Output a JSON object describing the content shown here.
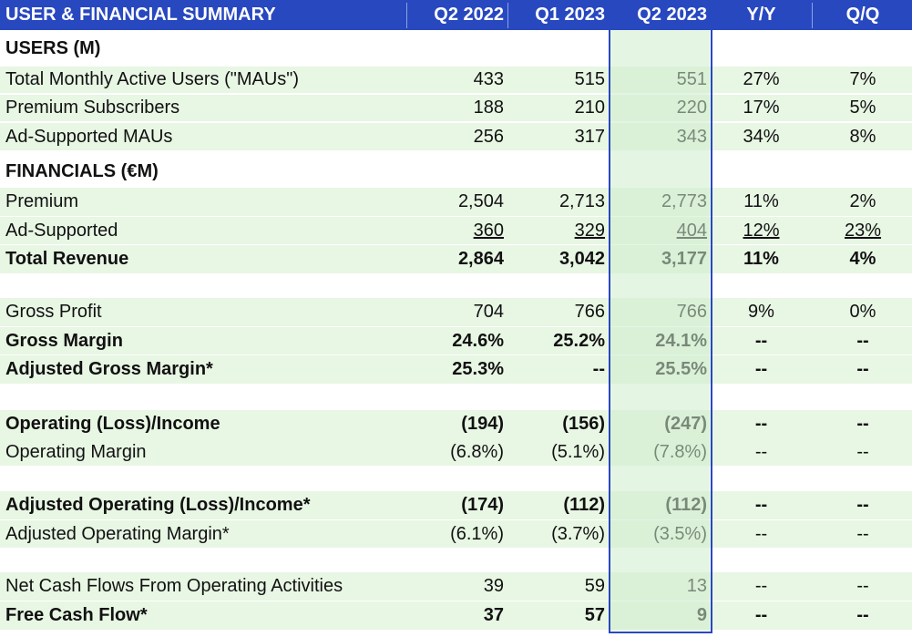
{
  "header": {
    "title": "USER & FINANCIAL SUMMARY",
    "columns": [
      "Q2 2022",
      "Q1 2023",
      "Q2 2023",
      "Y/Y",
      "Q/Q"
    ]
  },
  "rows": [
    {
      "label": "USERS (M)",
      "values": [
        "",
        "",
        "",
        "",
        ""
      ],
      "bold": true,
      "bg": "w",
      "underline": false
    },
    {
      "label": "Total Monthly Active Users (\"MAUs\")",
      "values": [
        "433",
        "515",
        "551",
        "27%",
        "7%"
      ],
      "bold": false,
      "bg": "g",
      "underline": false
    },
    {
      "label": "Premium Subscribers",
      "values": [
        "188",
        "210",
        "220",
        "17%",
        "5%"
      ],
      "bold": false,
      "bg": "g",
      "underline": false
    },
    {
      "label": "Ad-Supported MAUs",
      "values": [
        "256",
        "317",
        "343",
        "34%",
        "8%"
      ],
      "bold": false,
      "bg": "g",
      "underline": false
    },
    {
      "label": "FINANCIALS (€M)",
      "values": [
        "",
        "",
        "",
        "",
        ""
      ],
      "bold": true,
      "bg": "w",
      "underline": false
    },
    {
      "label": "Premium",
      "values": [
        "2,504",
        "2,713",
        "2,773",
        "11%",
        "2%"
      ],
      "bold": false,
      "bg": "g",
      "underline": false
    },
    {
      "label": "Ad-Supported",
      "values": [
        "360",
        "329",
        "404",
        "12%",
        "23%"
      ],
      "bold": false,
      "bg": "g",
      "underline": true
    },
    {
      "label": "Total Revenue",
      "values": [
        "2,864",
        "3,042",
        "3,177",
        "11%",
        "4%"
      ],
      "bold": true,
      "bg": "g",
      "underline": false
    },
    {
      "label": "",
      "values": [
        "",
        "",
        "",
        "",
        ""
      ],
      "bold": false,
      "bg": "w",
      "underline": false
    },
    {
      "label": "Gross Profit",
      "values": [
        "704",
        "766",
        "766",
        "9%",
        "0%"
      ],
      "bold": false,
      "bg": "g",
      "underline": false
    },
    {
      "label": "Gross Margin",
      "values": [
        "24.6%",
        "25.2%",
        "24.1%",
        "--",
        "--"
      ],
      "bold": true,
      "bg": "g",
      "underline": false
    },
    {
      "label": "Adjusted Gross Margin*",
      "values": [
        "25.3%",
        "--",
        "25.5%",
        "--",
        "--"
      ],
      "bold": true,
      "bg": "g",
      "underline": false
    },
    {
      "label": "",
      "values": [
        "",
        "",
        "",
        "",
        ""
      ],
      "bold": false,
      "bg": "w",
      "underline": false
    },
    {
      "label": "Operating (Loss)/Income",
      "values": [
        "(194)",
        "(156)",
        "(247)",
        "--",
        "--"
      ],
      "bold": true,
      "bg": "g",
      "underline": false
    },
    {
      "label": "Operating Margin",
      "values": [
        "(6.8%)",
        "(5.1%)",
        "(7.8%)",
        "--",
        "--"
      ],
      "bold": false,
      "bg": "g",
      "underline": false
    },
    {
      "label": "",
      "values": [
        "",
        "",
        "",
        "",
        ""
      ],
      "bold": false,
      "bg": "w",
      "underline": false
    },
    {
      "label": "Adjusted Operating (Loss)/Income*",
      "values": [
        "(174)",
        "(112)",
        "(112)",
        "--",
        "--"
      ],
      "bold": true,
      "bg": "g",
      "underline": false
    },
    {
      "label": "Adjusted Operating Margin*",
      "values": [
        "(6.1%)",
        "(3.7%)",
        "(3.5%)",
        "--",
        "--"
      ],
      "bold": false,
      "bg": "g",
      "underline": false
    },
    {
      "label": "",
      "values": [
        "",
        "",
        "",
        "",
        ""
      ],
      "bold": false,
      "bg": "w",
      "underline": false
    },
    {
      "label": "Net Cash Flows From Operating Activities",
      "values": [
        "39",
        "59",
        "13",
        "--",
        "--"
      ],
      "bold": false,
      "bg": "g",
      "underline": false
    },
    {
      "label": "Free Cash Flow*",
      "values": [
        "37",
        "57",
        "9",
        "--",
        "--"
      ],
      "bold": true,
      "bg": "g",
      "underline": false
    }
  ],
  "colors": {
    "header_bg": "#2848c0",
    "row_green": "#e8f6e4",
    "highlight": "#cdeccd"
  }
}
